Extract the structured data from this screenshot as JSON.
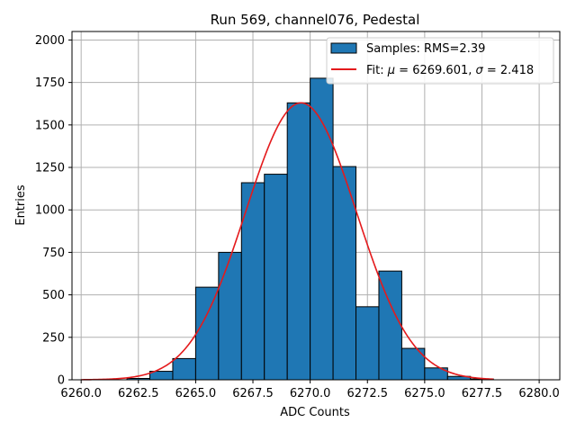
{
  "chart_data": {
    "type": "bar",
    "title": "Run 569, channel076, Pedestal",
    "xlabel": "ADC Counts",
    "ylabel": "Entries",
    "xlim": [
      6259.6,
      6280.9
    ],
    "ylim": [
      0,
      2050
    ],
    "grid": true,
    "x_ticks": [
      6260.0,
      6262.5,
      6265.0,
      6267.5,
      6270.0,
      6272.5,
      6275.0,
      6277.5,
      6280.0
    ],
    "x_tick_labels": [
      "6260.0",
      "6262.5",
      "6265.0",
      "6267.5",
      "6270.0",
      "6272.5",
      "6275.0",
      "6277.5",
      "6280.0"
    ],
    "y_ticks": [
      0,
      250,
      500,
      750,
      1000,
      1250,
      1500,
      1750,
      2000
    ],
    "y_tick_labels": [
      "0",
      "250",
      "500",
      "750",
      "1000",
      "1250",
      "1500",
      "1750",
      "2000"
    ],
    "bin_edges": [
      6262,
      6263,
      6264,
      6265,
      6266,
      6267,
      6268,
      6269,
      6270,
      6271,
      6272,
      6273,
      6274,
      6275,
      6276,
      6277,
      6278
    ],
    "values": [
      8,
      50,
      125,
      545,
      750,
      1160,
      1210,
      1630,
      1775,
      1255,
      430,
      640,
      185,
      70,
      20,
      5
    ],
    "series": [
      {
        "name": "Samples: RMS=2.39",
        "kind": "histogram",
        "color": "#1f77b4"
      },
      {
        "name": "Fit: μ = 6269.601, σ = 2.418",
        "kind": "gaussian",
        "color": "#e41a1c",
        "mu": 6269.601,
        "sigma": 2.418,
        "amplitude": 1630,
        "x_range": [
          6260,
          6278
        ]
      }
    ],
    "legend": {
      "position": "top-right",
      "entries": [
        {
          "label_prefix": "Samples: RMS=2.39",
          "label_suffix": ""
        },
        {
          "label_prefix": "Fit: ",
          "mu_symbol": "μ",
          "mid": " = 6269.601, ",
          "sigma_symbol": "σ",
          "label_suffix": " = 2.418"
        }
      ]
    }
  }
}
